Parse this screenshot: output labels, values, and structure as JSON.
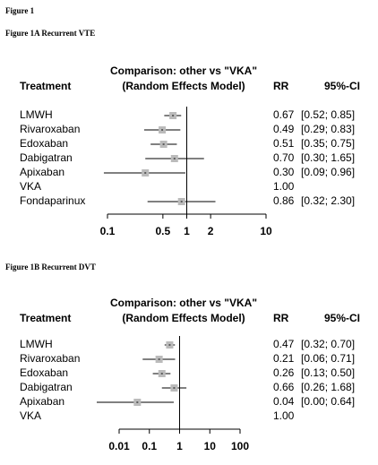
{
  "figure_title": "Figure 1",
  "chart_data": [
    {
      "type": "forest",
      "caption": "Figure 1A Recurrent VTE",
      "title": "Comparison: other vs \"VKA\"",
      "subtitle": "(Random Effects Model)",
      "headers": [
        "Treatment",
        "RR",
        "95%-CI"
      ],
      "categories": [
        "LMWH",
        "Rivaroxaban",
        "Edoxaban",
        "Dabigatran",
        "Apixaban",
        "VKA",
        "Fondaparinux"
      ],
      "values": [
        0.67,
        0.49,
        0.51,
        0.7,
        0.3,
        1,
        0.86
      ],
      "value_labels": [
        "0.67",
        "0.49",
        "0.51",
        "0.70",
        "0.30",
        "1.00",
        "0.86"
      ],
      "lower": [
        0.52,
        0.29,
        0.35,
        0.3,
        0.09,
        null,
        0.32
      ],
      "upper": [
        0.85,
        0.83,
        0.75,
        1.65,
        0.96,
        null,
        2.3
      ],
      "ci_labels": [
        "[0.52; 0.85]",
        "[0.29; 0.83]",
        "[0.35; 0.75]",
        "[0.30; 1.65]",
        "[0.09; 0.96]",
        null,
        "[0.32; 2.30]"
      ],
      "reference_value": 1,
      "log_scale": true,
      "color": "#bbbbbb",
      "xlim": [
        0.1,
        10
      ],
      "xticks": [
        0.1,
        0.5,
        1,
        2,
        10
      ]
    },
    {
      "type": "forest",
      "caption": "Figure 1B Recurrent DVT",
      "title": "Comparison: other vs \"VKA\"",
      "subtitle": "(Random Effects Model)",
      "headers": [
        "Treatment",
        "RR",
        "95%-CI"
      ],
      "categories": [
        "LMWH",
        "Rivaroxaban",
        "Edoxaban",
        "Dabigatran",
        "Apixaban",
        "VKA"
      ],
      "values": [
        0.47,
        0.21,
        0.26,
        0.66,
        0.04,
        1
      ],
      "value_labels": [
        "0.47",
        "0.21",
        "0.26",
        "0.66",
        "0.04",
        "1.00"
      ],
      "lower": [
        0.32,
        0.06,
        0.13,
        0.26,
        0,
        null
      ],
      "upper": [
        0.7,
        0.71,
        0.5,
        1.68,
        0.64,
        null
      ],
      "ci_labels": [
        "[0.32; 0.70]",
        "[0.06; 0.71]",
        "[0.13; 0.50]",
        "[0.26; 1.68]",
        "[0.00; 0.64]",
        null
      ],
      "reference_value": 1,
      "log_scale": true,
      "color": "#bbbbbb",
      "xlim": [
        0.01,
        100
      ],
      "xticks": [
        0.01,
        0.1,
        1,
        10,
        100
      ]
    }
  ]
}
